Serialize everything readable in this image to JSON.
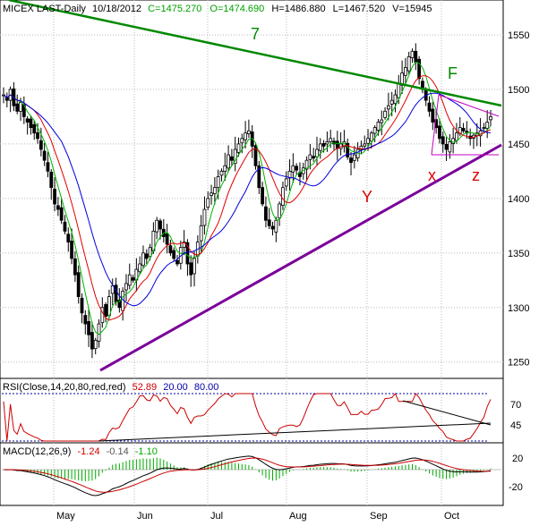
{
  "header": {
    "symbol": "MICEX LAST-Daily",
    "date": "10/18/2012",
    "close": "C=1475.270",
    "open": "O=1474.690",
    "high": "H=1486.880",
    "low": "L=1467.520",
    "volume": "V=15945"
  },
  "rsi_header": {
    "label": "RSI(Close,14,20,80,red,red)",
    "value": "52.89",
    "lower": "20.00",
    "upper": "80.00"
  },
  "macd_header": {
    "label": "MACD(12,26,9)",
    "macd": "-1.24",
    "signal": "-0.14",
    "hist": "-1.10"
  },
  "annotations": {
    "seven": "7",
    "f": "F",
    "y": "Y",
    "x": "x",
    "z": "z"
  },
  "colors": {
    "candle": "#000000",
    "ma_fast": "#00b400",
    "ma_mid": "#e00000",
    "ma_slow": "#0000dd",
    "trend_green": "#008800",
    "trend_purple": "#7a009a",
    "triangle": "#c000c0",
    "rsi_line": "#cc0000",
    "rsi_bands": "#0000aa",
    "macd_line": "#000000",
    "macd_signal": "#cc0000",
    "macd_hist": "#00aa00",
    "annotation_green": "#008800",
    "annotation_red": "#dd0000"
  },
  "chart_data": [
    {
      "type": "candlestick",
      "panel": "price",
      "ylim": [
        1235,
        1582
      ],
      "y_ticks": [
        1250,
        1300,
        1350,
        1400,
        1450,
        1500,
        1550
      ],
      "x_ticks": [
        "May",
        "Jun",
        "Jul",
        "Aug",
        "Sep",
        "Oct"
      ],
      "grid": true,
      "closes_approx": [
        1495,
        1490,
        1500,
        1485,
        1480,
        1488,
        1475,
        1470,
        1465,
        1460,
        1455,
        1445,
        1435,
        1425,
        1410,
        1395,
        1390,
        1380,
        1370,
        1360,
        1345,
        1330,
        1310,
        1295,
        1285,
        1275,
        1262,
        1270,
        1285,
        1300,
        1292,
        1310,
        1320,
        1305,
        1300,
        1315,
        1322,
        1330,
        1325,
        1335,
        1340,
        1350,
        1345,
        1355,
        1370,
        1380,
        1372,
        1365,
        1358,
        1350,
        1345,
        1340,
        1355,
        1360,
        1340,
        1330,
        1345,
        1360,
        1375,
        1390,
        1400,
        1405,
        1410,
        1420,
        1425,
        1430,
        1440,
        1435,
        1445,
        1450,
        1455,
        1460,
        1462,
        1448,
        1430,
        1410,
        1395,
        1380,
        1375,
        1372,
        1380,
        1395,
        1410,
        1418,
        1425,
        1430,
        1426,
        1420,
        1428,
        1435,
        1440,
        1437,
        1445,
        1450,
        1448,
        1452,
        1455,
        1450,
        1446,
        1450,
        1452,
        1438,
        1433,
        1440,
        1445,
        1448,
        1450,
        1455,
        1460,
        1465,
        1470,
        1472,
        1480,
        1485,
        1490,
        1495,
        1505,
        1515,
        1520,
        1530,
        1535,
        1525,
        1510,
        1500,
        1490,
        1480,
        1470,
        1465,
        1455,
        1450,
        1445,
        1452,
        1455,
        1460,
        1465,
        1462,
        1460,
        1455,
        1458,
        1460,
        1462,
        1465,
        1470,
        1475
      ],
      "moving_averages": [
        "fast (green)",
        "mid (red)",
        "slow (blue)"
      ],
      "annotations": [
        "7",
        "F",
        "Y",
        "x",
        "z"
      ]
    },
    {
      "type": "line",
      "panel": "rsi",
      "series_label": "RSI(Close,14,20,80,red,red)",
      "value": 52.89,
      "bands": [
        20,
        80
      ],
      "y_ticks": [
        45,
        70
      ]
    },
    {
      "type": "line",
      "panel": "macd",
      "series_label": "MACD(12,26,9)",
      "values": {
        "macd": -1.24,
        "signal": -0.14,
        "hist": -1.1
      },
      "y_ticks": [
        20,
        -20
      ]
    }
  ]
}
